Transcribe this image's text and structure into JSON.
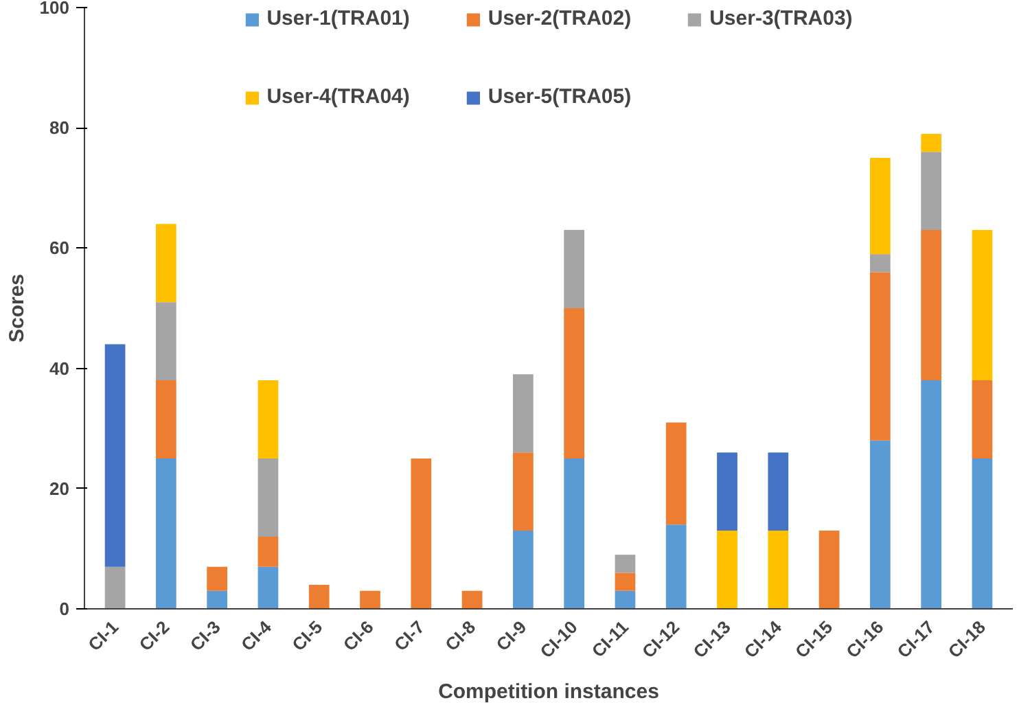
{
  "chart_data": {
    "type": "bar",
    "stacked": true,
    "xlabel": "Competition instances",
    "ylabel": "Scores",
    "categories": [
      "CI-1",
      "CI-2",
      "CI-3",
      "CI-4",
      "CI-5",
      "CI-6",
      "CI-7",
      "CI-8",
      "CI-9",
      "CI-10",
      "CI-11",
      "CI-12",
      "CI-13",
      "CI-14",
      "CI-15",
      "CI-16",
      "CI-17",
      "CI-18"
    ],
    "series": [
      {
        "name": "User-1(TRA01)",
        "color": "#5b9bd5",
        "values": [
          null,
          25,
          3,
          7,
          null,
          null,
          null,
          null,
          13,
          25,
          3,
          14,
          null,
          null,
          null,
          28,
          38,
          25
        ]
      },
      {
        "name": "User-2(TRA02)",
        "color": "#ed7d31",
        "values": [
          null,
          13,
          4,
          5,
          4,
          3,
          25,
          3,
          13,
          25,
          3,
          17,
          null,
          null,
          13,
          28,
          25,
          13
        ]
      },
      {
        "name": "User-3(TRA03)",
        "color": "#a5a5a5",
        "values": [
          7,
          13,
          null,
          13,
          null,
          null,
          null,
          null,
          13,
          13,
          3,
          null,
          null,
          null,
          null,
          3,
          13,
          null
        ]
      },
      {
        "name": "User-4(TRA04)",
        "color": "#ffc000",
        "values": [
          null,
          13,
          null,
          13,
          null,
          null,
          null,
          null,
          null,
          null,
          null,
          null,
          13,
          13,
          null,
          16,
          3,
          25
        ]
      },
      {
        "name": "User-5(TRA05)",
        "color": "#4472c4",
        "values": [
          37,
          null,
          null,
          null,
          null,
          null,
          null,
          null,
          null,
          null,
          null,
          null,
          13,
          13,
          null,
          null,
          null,
          null
        ]
      }
    ],
    "ylim": [
      0,
      100
    ],
    "yticks": [
      0,
      20,
      40,
      60,
      80,
      100
    ],
    "grid": false,
    "legend": "top"
  }
}
